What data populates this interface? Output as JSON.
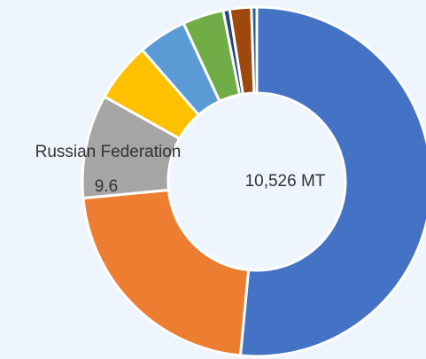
{
  "chart_data": {
    "type": "donut",
    "center_label": "10,526 MT",
    "categories": [
      null,
      null,
      "Russian Federation",
      null,
      null,
      null,
      null,
      null,
      null
    ],
    "values": [
      51.5,
      22,
      9.6,
      5.5,
      4.5,
      3.8,
      0.6,
      2,
      0.5
    ],
    "colors": [
      "#4472c4",
      "#ed7d31",
      "#a5a5a5",
      "#ffc000",
      "#5b9bd5",
      "#70ad47",
      "#264478",
      "#9e480e",
      "#255e91"
    ],
    "labeled": [
      2
    ]
  }
}
